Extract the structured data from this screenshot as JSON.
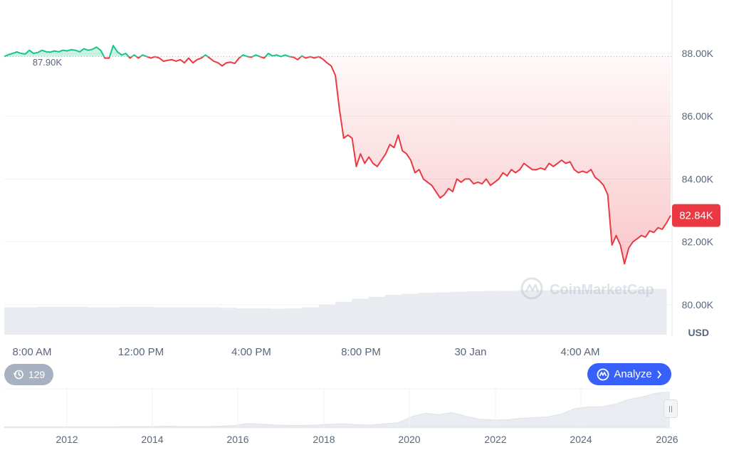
{
  "chart_data": {
    "type": "line",
    "currency_label": "USD",
    "open_price_label": "87.90K",
    "current_price_label": "82.84K",
    "open_price": 87.9,
    "current_price": 82.84,
    "ylim": [
      79.0,
      89.7
    ],
    "y_ticks": [
      {
        "value": 88,
        "label": "88.00K"
      },
      {
        "value": 86,
        "label": "86.00K"
      },
      {
        "value": 84,
        "label": "84.00K"
      },
      {
        "value": 82,
        "label": "82.00K"
      },
      {
        "value": 80,
        "label": "80.00K"
      }
    ],
    "x_tick_labels": [
      "8:00 AM",
      "12:00 PM",
      "4:00 PM",
      "8:00 PM",
      "30 Jan",
      "4:00 AM"
    ],
    "series": [
      {
        "values": [
          87.9,
          87.96,
          88.0,
          88.05,
          88.0,
          87.98,
          88.1,
          88.0,
          88.03,
          88.1,
          88.05,
          88.04,
          88.08,
          88.05,
          88.1,
          88.08,
          88.12,
          88.1,
          88.05,
          88.15,
          88.1,
          88.13,
          88.2,
          88.1,
          87.85,
          87.85,
          88.25,
          88.05,
          87.95,
          88.0,
          87.85,
          87.95,
          87.85,
          87.95,
          87.9,
          87.85,
          87.9,
          87.85,
          87.75,
          87.78,
          87.8,
          87.75,
          87.8,
          87.7,
          87.85,
          87.7,
          87.8,
          87.85,
          87.95,
          87.85,
          87.75,
          87.7,
          87.6,
          87.7,
          87.72,
          87.68,
          87.85,
          87.95,
          87.9,
          87.88,
          87.95,
          87.9,
          87.85,
          88.0,
          87.92,
          87.95,
          87.9,
          87.95,
          87.9,
          87.88,
          87.8,
          87.92,
          87.85,
          87.9,
          87.85,
          87.9,
          87.82,
          87.7,
          87.6,
          87.3,
          86.2,
          85.3,
          85.4,
          85.3,
          84.4,
          84.8,
          84.5,
          84.7,
          84.5,
          84.4,
          84.6,
          84.8,
          85.1,
          85.0,
          85.4,
          84.9,
          84.8,
          84.6,
          84.2,
          84.3,
          84.0,
          83.9,
          83.8,
          83.6,
          83.4,
          83.5,
          83.7,
          83.6,
          84.0,
          83.9,
          84.0,
          84.0,
          83.85,
          83.9,
          83.85,
          84.0,
          83.8,
          83.9,
          84.0,
          84.2,
          84.1,
          84.3,
          84.2,
          84.3,
          84.5,
          84.4,
          84.3,
          84.3,
          84.35,
          84.3,
          84.5,
          84.4,
          84.5,
          84.6,
          84.5,
          84.55,
          84.3,
          84.2,
          84.25,
          84.2,
          84.3,
          84.05,
          83.95,
          83.8,
          83.5,
          81.9,
          82.2,
          81.9,
          81.3,
          81.8,
          82.0,
          82.1,
          82.2,
          82.15,
          82.35,
          82.3,
          82.45,
          82.4,
          82.6,
          82.84
        ]
      }
    ]
  },
  "volume": {
    "values": [
      0.55,
      0.55,
      0.56,
      0.56,
      0.56,
      0.55,
      0.55,
      0.56,
      0.56,
      0.55,
      0.55,
      0.55,
      0.55,
      0.54,
      0.53,
      0.53,
      0.52,
      0.53,
      0.55,
      0.6,
      0.66,
      0.72,
      0.76,
      0.8,
      0.82,
      0.84,
      0.85,
      0.86,
      0.87,
      0.88,
      0.88,
      0.89,
      0.89,
      0.9,
      0.9,
      0.9,
      0.9,
      0.9,
      0.91,
      0.92
    ]
  },
  "navigator": {
    "year_labels": [
      "2012",
      "2014",
      "2016",
      "2018",
      "2020",
      "2022",
      "2024",
      "2026"
    ],
    "history_values": [
      0.01,
      0.01,
      0.01,
      0.01,
      0.01,
      0.01,
      0.01,
      0.01,
      0.01,
      0.02,
      0.02,
      0.02,
      0.03,
      0.02,
      0.02,
      0.02,
      0.03,
      0.05,
      0.1,
      0.08,
      0.06,
      0.05,
      0.05,
      0.06,
      0.08,
      0.09,
      0.07,
      0.06,
      0.09,
      0.12,
      0.28,
      0.38,
      0.34,
      0.4,
      0.3,
      0.22,
      0.2,
      0.2,
      0.24,
      0.26,
      0.28,
      0.35,
      0.5,
      0.55,
      0.55,
      0.62,
      0.75,
      0.82,
      0.92,
      0.95
    ]
  },
  "controls": {
    "history_count": "129",
    "analyze_label": "Analyze"
  },
  "watermark": {
    "text": "CoinMarketCap"
  },
  "colors": {
    "up": "#16c784",
    "down": "#ea3943",
    "axis_text": "#58667e",
    "grid": "#eff2f5",
    "analyze_bg": "#3861fb",
    "history_bg": "#a7b1c2"
  }
}
